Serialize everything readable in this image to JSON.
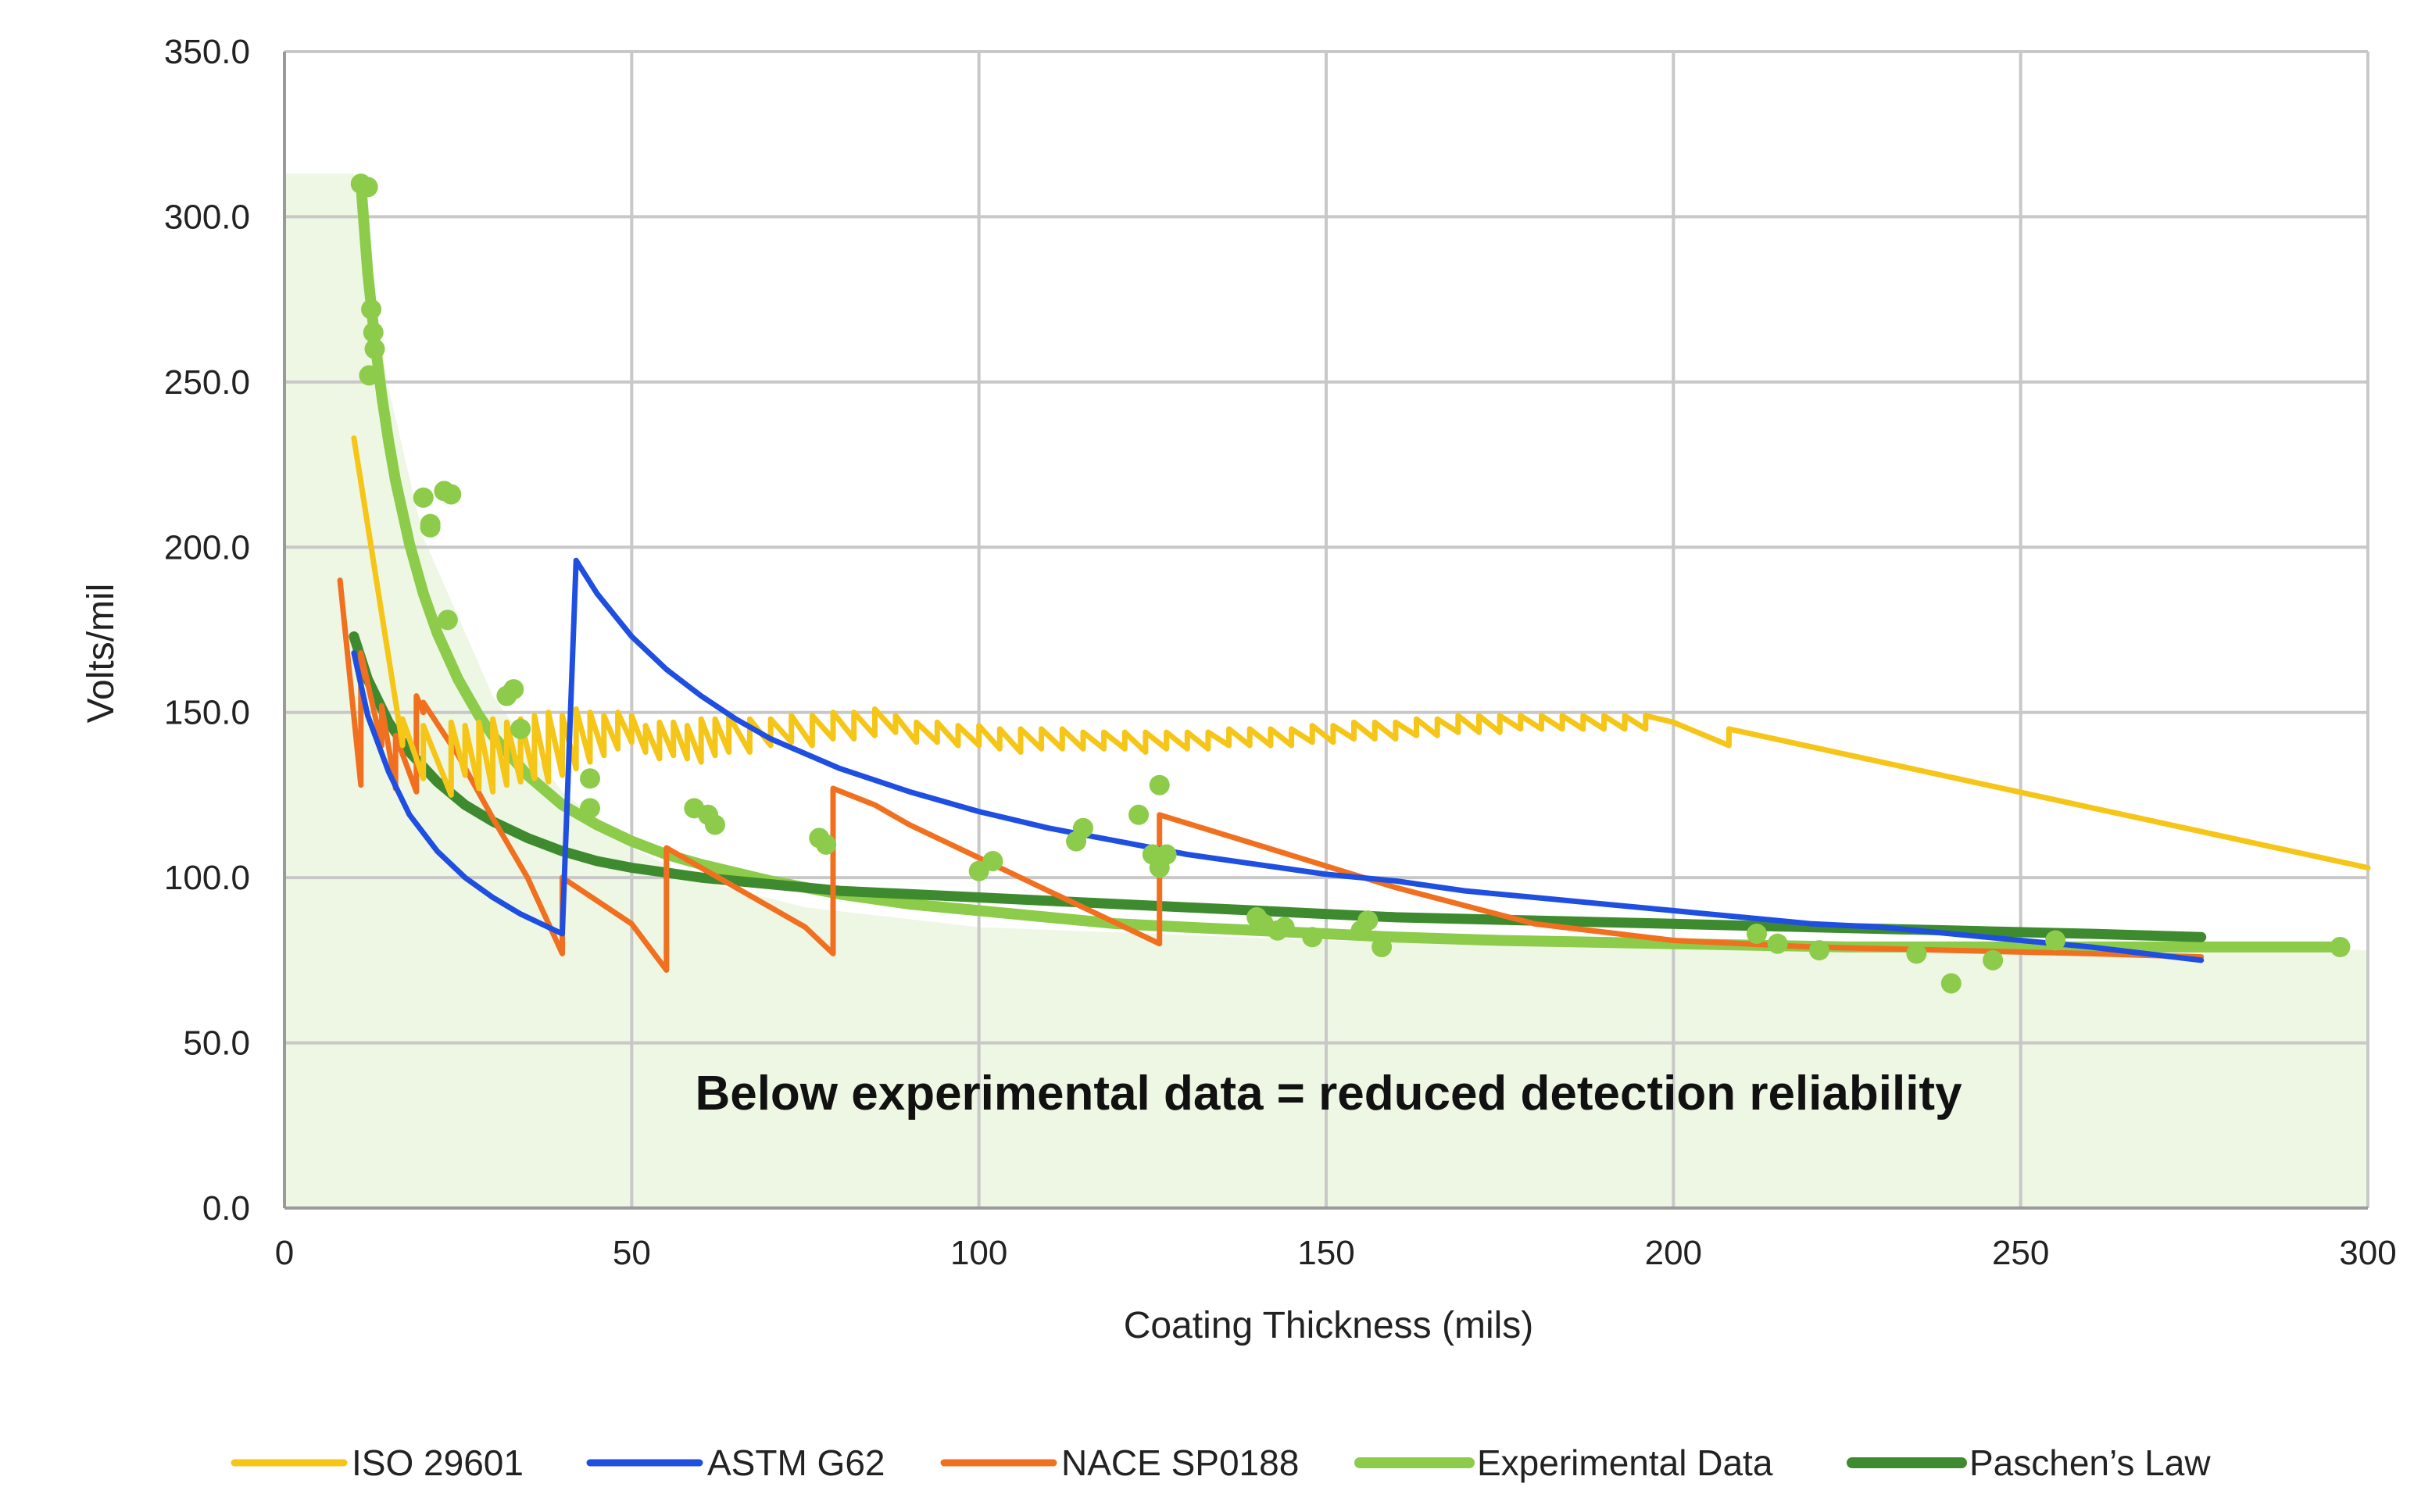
{
  "chart_data": {
    "type": "line",
    "title": "",
    "xlabel": "Coating Thickness (mils)",
    "ylabel": "Volts/mil",
    "xlim": [
      0,
      300
    ],
    "ylim": [
      0,
      350
    ],
    "x_ticks": [
      0,
      50,
      100,
      150,
      200,
      250,
      300
    ],
    "y_ticks": [
      0,
      50,
      100,
      150,
      200,
      250,
      300,
      350
    ],
    "y_tick_labels": [
      "0.0",
      "50.0",
      "100.0",
      "150.0",
      "200.0",
      "250.0",
      "300.0",
      "350.0"
    ],
    "grid": true,
    "legend_position": "bottom",
    "annotation": {
      "text": "Below experimental data = reduced detection reliability",
      "x": 150,
      "y": 30
    },
    "shaded_region": {
      "description_color": "#eef6e4",
      "x": [
        0,
        10,
        10,
        15,
        20,
        30,
        40,
        50,
        60,
        75,
        100,
        125,
        150,
        175,
        200,
        225,
        250,
        275,
        300
      ],
      "y": [
        313,
        313,
        310,
        248,
        203,
        155,
        126,
        109,
        99,
        91,
        85,
        83,
        81,
        80,
        79,
        78,
        78,
        78,
        78
      ]
    },
    "series": [
      {
        "name": "ISO 29601",
        "color": "#f5c518",
        "kind": "line",
        "x": [
          10,
          17,
          17,
          20,
          20,
          24,
          24,
          26,
          26,
          28,
          28,
          30,
          30,
          32,
          32,
          34,
          34,
          36,
          36,
          38,
          38,
          40,
          40,
          42,
          42,
          44,
          44,
          46,
          46,
          48,
          48,
          50,
          50,
          52,
          52,
          54,
          54,
          56,
          56,
          58,
          58,
          60,
          60,
          62,
          62,
          64,
          64,
          67,
          67,
          70,
          70,
          73,
          73,
          76,
          76,
          79,
          79,
          82,
          82,
          85,
          85,
          88,
          88,
          91,
          91,
          94,
          94,
          97,
          97,
          100,
          100,
          103,
          103,
          106,
          106,
          109,
          109,
          112,
          112,
          115,
          115,
          118,
          118,
          121,
          121,
          124,
          124,
          127,
          127,
          130,
          130,
          133,
          133,
          136,
          136,
          139,
          139,
          142,
          142,
          145,
          145,
          148,
          148,
          151,
          151,
          154,
          154,
          157,
          157,
          160,
          160,
          163,
          163,
          166,
          166,
          169,
          169,
          172,
          172,
          175,
          175,
          178,
          178,
          181,
          181,
          184,
          184,
          187,
          187,
          190,
          190,
          193,
          193,
          196,
          196,
          200,
          208,
          208,
          300
        ],
        "y": [
          233,
          140,
          148,
          130,
          146,
          125,
          147,
          131,
          146,
          127,
          147,
          126,
          148,
          128,
          147,
          129,
          148,
          130,
          149,
          129,
          150,
          131,
          149,
          133,
          151,
          135,
          150,
          137,
          149,
          139,
          150,
          141,
          149,
          138,
          146,
          136,
          147,
          137,
          147,
          136,
          146,
          135,
          148,
          137,
          148,
          138,
          149,
          138,
          148,
          140,
          148,
          141,
          149,
          140,
          149,
          142,
          150,
          142,
          150,
          143,
          151,
          144,
          149,
          141,
          147,
          141,
          147,
          140,
          146,
          140,
          146,
          139,
          145,
          138,
          145,
          139,
          145,
          139,
          145,
          139,
          144,
          139,
          144,
          139,
          144,
          138,
          144,
          139,
          144,
          139,
          144,
          139,
          144,
          140,
          145,
          140,
          145,
          140,
          145,
          140,
          145,
          141,
          146,
          141,
          146,
          142,
          147,
          142,
          147,
          142,
          147,
          143,
          148,
          143,
          148,
          144,
          149,
          144,
          149,
          144,
          149,
          145,
          149,
          145,
          149,
          145,
          149,
          145,
          149,
          145,
          149,
          145,
          149,
          145,
          149,
          147,
          140,
          145,
          103
        ]
      },
      {
        "name": "ASTM G62",
        "color": "#1f4fe0",
        "kind": "line",
        "x": [
          10,
          12,
          15,
          18,
          22,
          26,
          30,
          34,
          38,
          40,
          42,
          45,
          50,
          55,
          60,
          65,
          70,
          80,
          90,
          100,
          110,
          120,
          130,
          140,
          150,
          160,
          170,
          180,
          190,
          200,
          210,
          220,
          230,
          240,
          250,
          260,
          276
        ],
        "y": [
          168,
          149,
          132,
          119,
          108,
          100,
          94,
          89,
          85,
          83,
          196,
          186,
          173,
          163,
          155,
          148,
          142,
          133,
          126,
          120,
          115,
          111,
          107,
          104,
          101,
          99,
          96,
          94,
          92,
          90,
          88,
          86,
          85,
          83,
          81,
          79,
          75
        ]
      },
      {
        "name": "NACE SP0188",
        "color": "#f07020",
        "kind": "line",
        "x": [
          8,
          11,
          11,
          14,
          14,
          16,
          16,
          19,
          19,
          20,
          20,
          25,
          30,
          35,
          40,
          40,
          45,
          50,
          55,
          55,
          60,
          65,
          70,
          75,
          79,
          79,
          85,
          90,
          95,
          100,
          105,
          110,
          115,
          120,
          126,
          126,
          140,
          160,
          180,
          200,
          220,
          240,
          260,
          276
        ],
        "y": [
          190,
          128,
          168,
          140,
          152,
          127,
          143,
          126,
          155,
          150,
          153,
          137,
          118,
          100,
          77,
          100,
          93,
          86,
          72,
          109,
          103,
          97,
          91,
          85,
          77,
          127,
          122,
          116,
          111,
          106,
          101,
          96,
          91,
          86,
          80,
          119,
          110,
          97,
          86,
          81,
          79,
          78,
          77,
          76
        ]
      },
      {
        "name": "Experimental Data",
        "color": "#8ccc4a",
        "kind": "line",
        "x": [
          11,
          12,
          13,
          14,
          15,
          16,
          18,
          20,
          22,
          25,
          28,
          30,
          35,
          40,
          45,
          50,
          55,
          60,
          70,
          80,
          90,
          100,
          110,
          120,
          130,
          140,
          150,
          160,
          175,
          200,
          225,
          250,
          275,
          295
        ],
        "y": [
          310,
          283,
          263,
          246,
          232,
          220,
          201,
          186,
          174,
          160,
          149,
          143,
          131,
          122,
          116,
          111,
          107,
          104,
          99,
          95,
          92,
          90,
          88,
          86,
          85,
          84,
          83,
          82,
          81,
          80,
          79,
          79,
          79,
          79
        ]
      },
      {
        "name": "Paschen’s Law",
        "color": "#3e8a2e",
        "kind": "line",
        "x": [
          10,
          12,
          15,
          18,
          22,
          26,
          30,
          35,
          40,
          45,
          50,
          60,
          70,
          80,
          90,
          100,
          120,
          140,
          160,
          180,
          200,
          220,
          240,
          260,
          276
        ],
        "y": [
          173,
          160,
          147,
          138,
          129,
          122,
          117,
          112,
          108,
          105,
          103,
          100,
          98,
          96,
          95,
          94,
          92,
          90,
          88,
          87,
          86,
          85,
          84,
          83,
          82
        ]
      }
    ],
    "scatter_points": {
      "series": "Experimental Data",
      "color": "#8ccc4a",
      "x": [
        11,
        12,
        12.5,
        12.8,
        13,
        12.2,
        20,
        21,
        23,
        23.5,
        21,
        24,
        32,
        33,
        34,
        44,
        44,
        59,
        61,
        62,
        77,
        78,
        100,
        102,
        114,
        115,
        123,
        125,
        126,
        127,
        126,
        140,
        141,
        143,
        144,
        148,
        155,
        156,
        158,
        212,
        215,
        221,
        235,
        240,
        246,
        255,
        296
      ],
      "y": [
        310,
        309,
        272,
        265,
        260,
        252,
        215,
        207,
        217,
        178,
        206,
        216,
        155,
        157,
        145,
        130,
        121,
        121,
        119,
        116,
        112,
        110,
        102,
        105,
        111,
        115,
        119,
        107,
        103,
        107,
        128,
        88,
        86,
        84,
        85,
        82,
        84,
        87,
        79,
        83,
        80,
        78,
        77,
        68,
        75,
        81,
        79
      ]
    }
  }
}
